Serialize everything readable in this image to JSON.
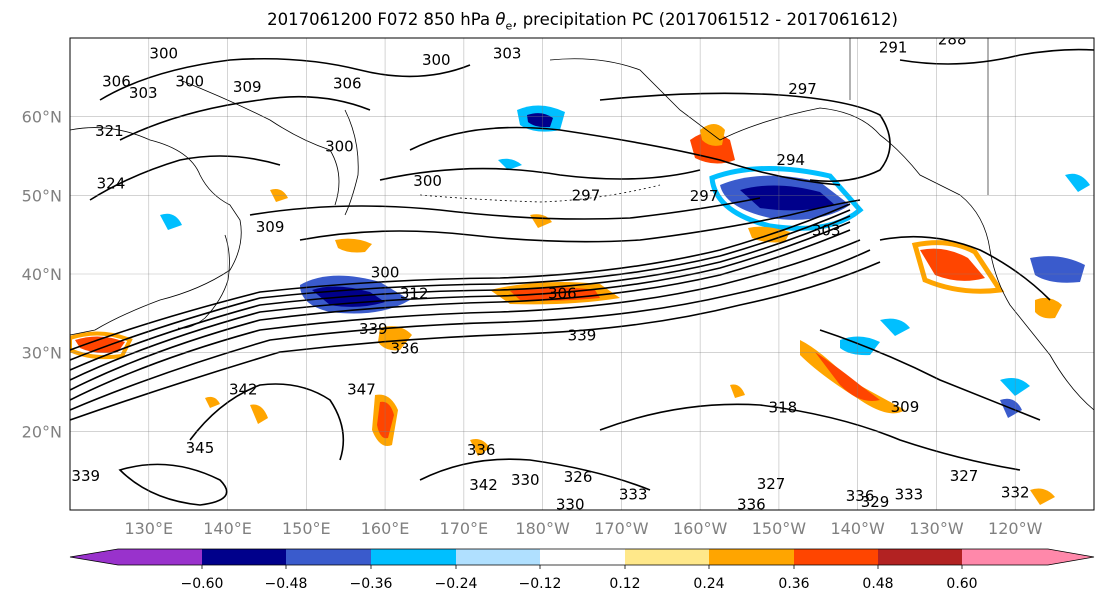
{
  "title": {
    "prefix": "2017061200 F072 850 hPa ",
    "symbol": "θ",
    "subscript": "e",
    "suffix": ", precipitation PC (2017061512 - 2017061612)"
  },
  "map": {
    "lon_labels": [
      "130°E",
      "140°E",
      "150°E",
      "160°E",
      "170°E",
      "180°W",
      "170°W",
      "160°W",
      "150°W",
      "140°W",
      "130°W",
      "120°W"
    ],
    "lat_labels": [
      "60°N",
      "50°N",
      "40°N",
      "30°N",
      "20°N"
    ],
    "contour_labels": [
      {
        "text": "300",
        "lon": 131.9,
        "lat": 68.0
      },
      {
        "text": "306",
        "lon": 125.9,
        "lat": 64.5
      },
      {
        "text": "303",
        "lon": 129.3,
        "lat": 63.0
      },
      {
        "text": "300",
        "lon": 135.2,
        "lat": 64.5
      },
      {
        "text": "309",
        "lon": 142.5,
        "lat": 63.8
      },
      {
        "text": "306",
        "lon": 155.2,
        "lat": 64.2
      },
      {
        "text": "303",
        "lon": 175.5,
        "lat": 68.0
      },
      {
        "text": "300",
        "lon": 166.5,
        "lat": 67.2
      },
      {
        "text": "300",
        "lon": 154.2,
        "lat": 56.2
      },
      {
        "text": "300",
        "lon": 165.4,
        "lat": 51.8
      },
      {
        "text": "297",
        "lon": 185.5,
        "lat": 50.0
      },
      {
        "text": "297",
        "lon": 213.0,
        "lat": 63.5
      },
      {
        "text": "294",
        "lon": 211.5,
        "lat": 54.5
      },
      {
        "text": "297",
        "lon": 200.5,
        "lat": 49.9
      },
      {
        "text": "291",
        "lon": 224.5,
        "lat": 68.8
      },
      {
        "text": "288",
        "lon": 232.0,
        "lat": 69.8
      },
      {
        "text": "303",
        "lon": 216.0,
        "lat": 45.5
      },
      {
        "text": "321",
        "lon": 125.0,
        "lat": 58.2
      },
      {
        "text": "324",
        "lon": 125.2,
        "lat": 51.5
      },
      {
        "text": "309",
        "lon": 145.4,
        "lat": 46.0
      },
      {
        "text": "300",
        "lon": 160.0,
        "lat": 40.2
      },
      {
        "text": "312",
        "lon": 163.7,
        "lat": 37.5
      },
      {
        "text": "306",
        "lon": 182.5,
        "lat": 37.5
      },
      {
        "text": "339",
        "lon": 158.5,
        "lat": 33.0
      },
      {
        "text": "336",
        "lon": 162.5,
        "lat": 30.5
      },
      {
        "text": "339",
        "lon": 185.0,
        "lat": 32.2
      },
      {
        "text": "342",
        "lon": 142.0,
        "lat": 25.3
      },
      {
        "text": "347",
        "lon": 157.0,
        "lat": 25.3
      },
      {
        "text": "345",
        "lon": 136.5,
        "lat": 17.9
      },
      {
        "text": "339",
        "lon": 122.0,
        "lat": 14.3
      },
      {
        "text": "336",
        "lon": 172.2,
        "lat": 17.6
      },
      {
        "text": "330",
        "lon": 177.8,
        "lat": 13.8
      },
      {
        "text": "342",
        "lon": 172.5,
        "lat": 13.2
      },
      {
        "text": "326",
        "lon": 184.5,
        "lat": 14.2
      },
      {
        "text": "330",
        "lon": 183.5,
        "lat": 10.7
      },
      {
        "text": "333",
        "lon": 191.5,
        "lat": 12.0
      },
      {
        "text": "336",
        "lon": 206.5,
        "lat": 10.7
      },
      {
        "text": "327",
        "lon": 209.0,
        "lat": 13.3
      },
      {
        "text": "318",
        "lon": 210.5,
        "lat": 23.0
      },
      {
        "text": "309",
        "lon": 226.0,
        "lat": 23.1
      },
      {
        "text": "336",
        "lon": 220.3,
        "lat": 11.8
      },
      {
        "text": "329",
        "lon": 222.2,
        "lat": 11.0
      },
      {
        "text": "333",
        "lon": 226.5,
        "lat": 12.0
      },
      {
        "text": "332",
        "lon": 240.0,
        "lat": 12.2
      },
      {
        "text": "327",
        "lon": 233.5,
        "lat": 14.3
      }
    ]
  },
  "colorbar": {
    "colors": [
      "#9932cc",
      "#00008b",
      "#3a5bcc",
      "#00bfff",
      "#b0e0ff",
      "#ffffff",
      "#ffe88a",
      "#ffa500",
      "#ff4500",
      "#b22222",
      "#ff88aa"
    ],
    "tick_labels": [
      "−0.60",
      "−0.48",
      "−0.36",
      "−0.24",
      "−0.12",
      "0.12",
      "0.24",
      "0.36",
      "0.48",
      "0.60"
    ]
  }
}
